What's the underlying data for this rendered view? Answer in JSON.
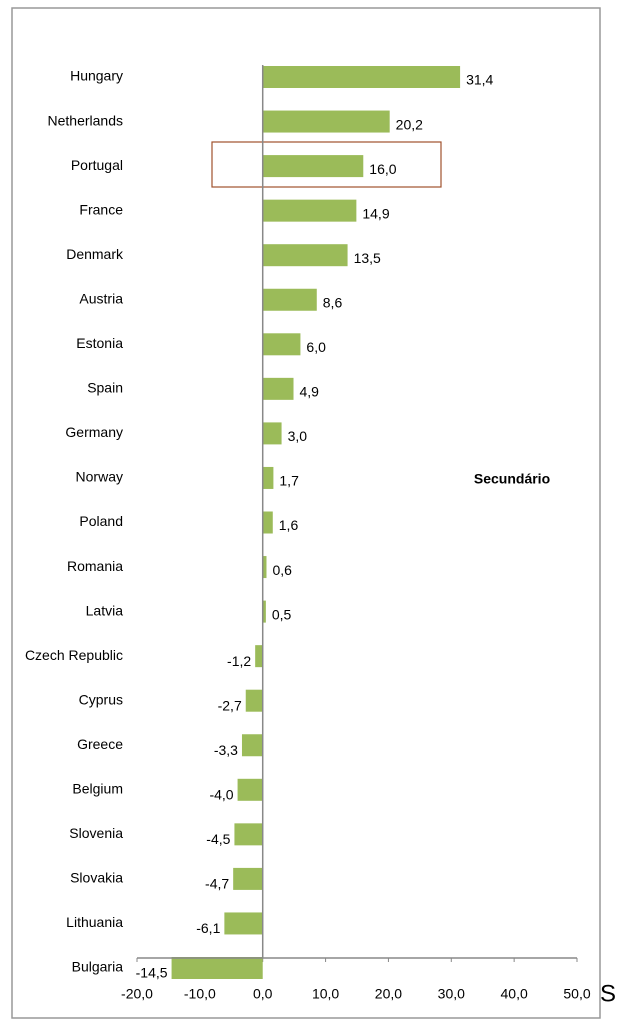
{
  "chart_data": {
    "type": "bar",
    "orientation": "horizontal",
    "categories": [
      "Hungary",
      "Netherlands",
      "Portugal",
      "France",
      "Denmark",
      "Austria",
      "Estonia",
      "Spain",
      "Germany",
      "Norway",
      "Poland",
      "Romania",
      "Latvia",
      "Czech Republic",
      "Cyprus",
      "Greece",
      "Belgium",
      "Slovenia",
      "Slovakia",
      "Lithuania",
      "Bulgaria"
    ],
    "values": [
      31.4,
      20.2,
      16.0,
      14.9,
      13.5,
      8.6,
      6.0,
      4.9,
      3.0,
      1.7,
      1.6,
      0.6,
      0.5,
      -1.2,
      -2.7,
      -3.3,
      -4.0,
      -4.5,
      -4.7,
      -6.1,
      -14.5
    ],
    "value_labels": [
      "31,4",
      "20,2",
      "16,0",
      "14,9",
      "13,5",
      "8,6",
      "6,0",
      "4,9",
      "3,0",
      "1,7",
      "1,6",
      "0,6",
      "0,5",
      "-1,2",
      "-2,7",
      "-3,3",
      "-4,0",
      "-4,5",
      "-4,7",
      "-6,1",
      "-14,5"
    ],
    "color": "#9bbb59",
    "xlim": [
      -20,
      50
    ],
    "xticks": [
      {
        "value": -20,
        "label": "-20,0"
      },
      {
        "value": -10,
        "label": "-10,0"
      },
      {
        "value": 0,
        "label": "0,0"
      },
      {
        "value": 10,
        "label": "10,0"
      },
      {
        "value": 20,
        "label": "20,0"
      },
      {
        "value": 30,
        "label": "30,0"
      },
      {
        "value": 40,
        "label": "40,0"
      },
      {
        "value": 50,
        "label": "50,0"
      }
    ],
    "annotation": "Secundário",
    "side_text": "S"
  }
}
